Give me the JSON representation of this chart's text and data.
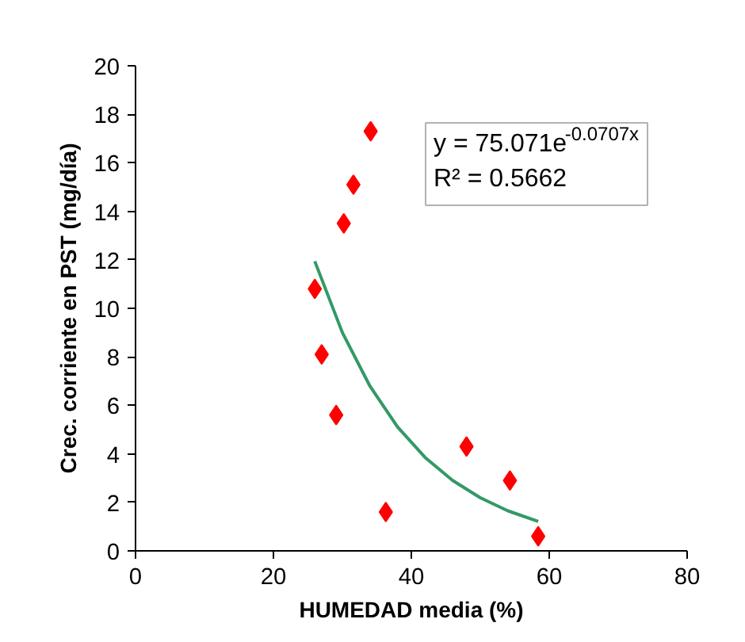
{
  "chart_data": {
    "type": "scatter",
    "xlabel": "HUMEDAD media (%)",
    "ylabel": "Crec. corriente en PST (mg/día)",
    "xlim": [
      0,
      80
    ],
    "ylim": [
      0,
      20
    ],
    "xticks": [
      0,
      20,
      40,
      60,
      80
    ],
    "yticks": [
      0,
      2,
      4,
      6,
      8,
      10,
      12,
      14,
      16,
      18,
      20
    ],
    "grid": false,
    "annotations": [
      "y = 75.071e$^{-0.0707x}$",
      "R² = 0.5662"
    ],
    "series": [
      {
        "marker": "diamond",
        "color": "#ff0000",
        "x": [
          26,
          27,
          29.1,
          30.2,
          31.6,
          34.1,
          36.3,
          48,
          54.3,
          58.4
        ],
        "values": [
          10.8,
          8.1,
          5.6,
          13.5,
          15.1,
          17.3,
          1.6,
          4.3,
          2.9,
          0.6
        ]
      },
      {
        "type": "line",
        "color": "#339966",
        "line_style": "solid",
        "x": [
          26,
          30,
          34,
          38,
          42,
          46,
          50,
          54,
          58.4
        ],
        "values": [
          11.94,
          9.0,
          6.79,
          5.11,
          3.85,
          2.9,
          2.19,
          1.65,
          1.21
        ]
      }
    ]
  }
}
